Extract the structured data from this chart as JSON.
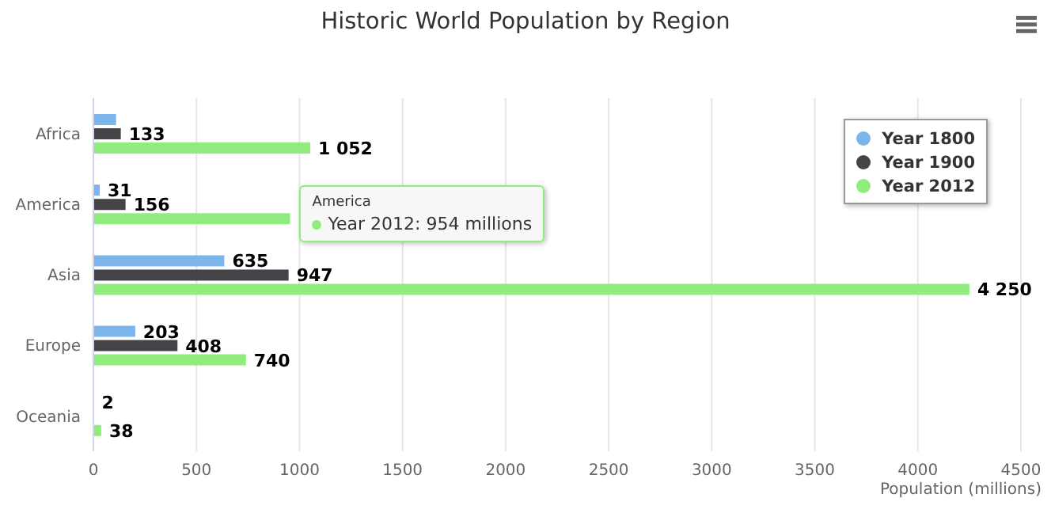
{
  "chart_data": {
    "type": "bar",
    "orientation": "horizontal",
    "title": "Historic World Population by Region",
    "xlabel": "Population (millions)",
    "categories": [
      "Africa",
      "America",
      "Asia",
      "Europe",
      "Oceania"
    ],
    "series": [
      {
        "name": "Year 1800",
        "color": "#7cb5ec",
        "values": [
          110,
          31,
          635,
          203,
          2
        ],
        "value_labels": [
          null,
          "31",
          "635",
          "203",
          "2"
        ]
      },
      {
        "name": "Year 1900",
        "color": "#434348",
        "values": [
          133,
          156,
          947,
          408,
          null
        ],
        "value_labels": [
          "133",
          "156",
          "947",
          "408",
          null
        ]
      },
      {
        "name": "Year 2012",
        "color": "#90ed7d",
        "values": [
          1052,
          954,
          4250,
          740,
          38
        ],
        "value_labels": [
          "1 052",
          null,
          "4 250",
          "740",
          "38"
        ]
      }
    ],
    "xlim": [
      0,
      4500
    ],
    "xticks": [
      0,
      500,
      1000,
      1500,
      2000,
      2500,
      3000,
      3500,
      4000,
      4500
    ],
    "grid": "x",
    "legend": "top right",
    "annotations": [
      {
        "text": "America\nYear 2012: 954 millions",
        "x": 954,
        "y": "America"
      }
    ]
  }
}
